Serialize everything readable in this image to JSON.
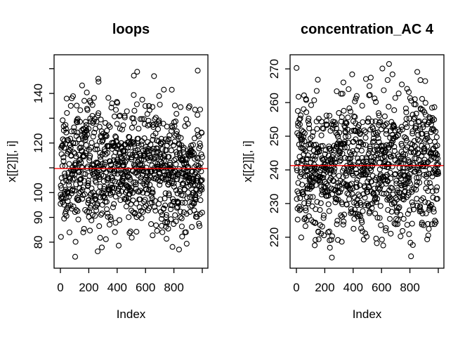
{
  "figure": {
    "background": "#FFFFFF",
    "foreground": "#000000",
    "accent_line_color": "#FF0000"
  },
  "chart_data": [
    {
      "type": "scatter",
      "title": "loops",
      "xlabel": "Index",
      "ylabel": "x[[2]][, i]",
      "n_points": 1000,
      "x_min": 1,
      "x_max": 1000,
      "xlim": [
        -44.6,
        1039.6
      ],
      "ylim": [
        69.5,
        155.6
      ],
      "x_ticks": [
        {
          "value": 0,
          "label": "0"
        },
        {
          "value": 200,
          "label": "200"
        },
        {
          "value": 400,
          "label": "400"
        },
        {
          "value": 600,
          "label": "600"
        },
        {
          "value": 800,
          "label": "800"
        },
        {
          "value": 1000,
          "label": ""
        }
      ],
      "y_ticks": [
        {
          "value": 80,
          "label": "80"
        },
        {
          "value": 90,
          "label": "90"
        },
        {
          "value": 100,
          "label": "100"
        },
        {
          "value": 110,
          "label": ""
        },
        {
          "value": 120,
          "label": "120"
        },
        {
          "value": 130,
          "label": ""
        },
        {
          "value": 140,
          "label": "140"
        },
        {
          "value": 150,
          "label": ""
        }
      ],
      "y_distribution": {
        "kind": "normal",
        "mean": 109.7,
        "sd": 12.5,
        "min": 73.5,
        "max": 152.5,
        "seed": 11
      },
      "hline": {
        "value": 109.7,
        "color": "#FF0000"
      },
      "marker": {
        "shape": "open-circle",
        "color": "#000000",
        "radius": 3.5
      },
      "grid": false,
      "legend": null
    },
    {
      "type": "scatter",
      "title": "concentration_AC 4",
      "xlabel": "Index",
      "ylabel": "x[[2]][, i]",
      "n_points": 1000,
      "x_min": 1,
      "x_max": 1000,
      "xlim": [
        -44.6,
        1039.6
      ],
      "ylim": [
        210.8,
        274.2
      ],
      "x_ticks": [
        {
          "value": 0,
          "label": "0"
        },
        {
          "value": 200,
          "label": "200"
        },
        {
          "value": 400,
          "label": "400"
        },
        {
          "value": 600,
          "label": "600"
        },
        {
          "value": 800,
          "label": "800"
        },
        {
          "value": 1000,
          "label": ""
        }
      ],
      "y_ticks": [
        {
          "value": 220,
          "label": "220"
        },
        {
          "value": 230,
          "label": "230"
        },
        {
          "value": 240,
          "label": "240"
        },
        {
          "value": 250,
          "label": "250"
        },
        {
          "value": 260,
          "label": "260"
        },
        {
          "value": 270,
          "label": "270"
        }
      ],
      "y_distribution": {
        "kind": "normal",
        "mean": 241.3,
        "sd": 10.5,
        "min": 213.0,
        "max": 272.0,
        "seed": 7
      },
      "hline": {
        "value": 241.3,
        "color": "#FF0000"
      },
      "marker": {
        "shape": "open-circle",
        "color": "#000000",
        "radius": 3.5
      },
      "grid": false,
      "legend": null
    }
  ]
}
